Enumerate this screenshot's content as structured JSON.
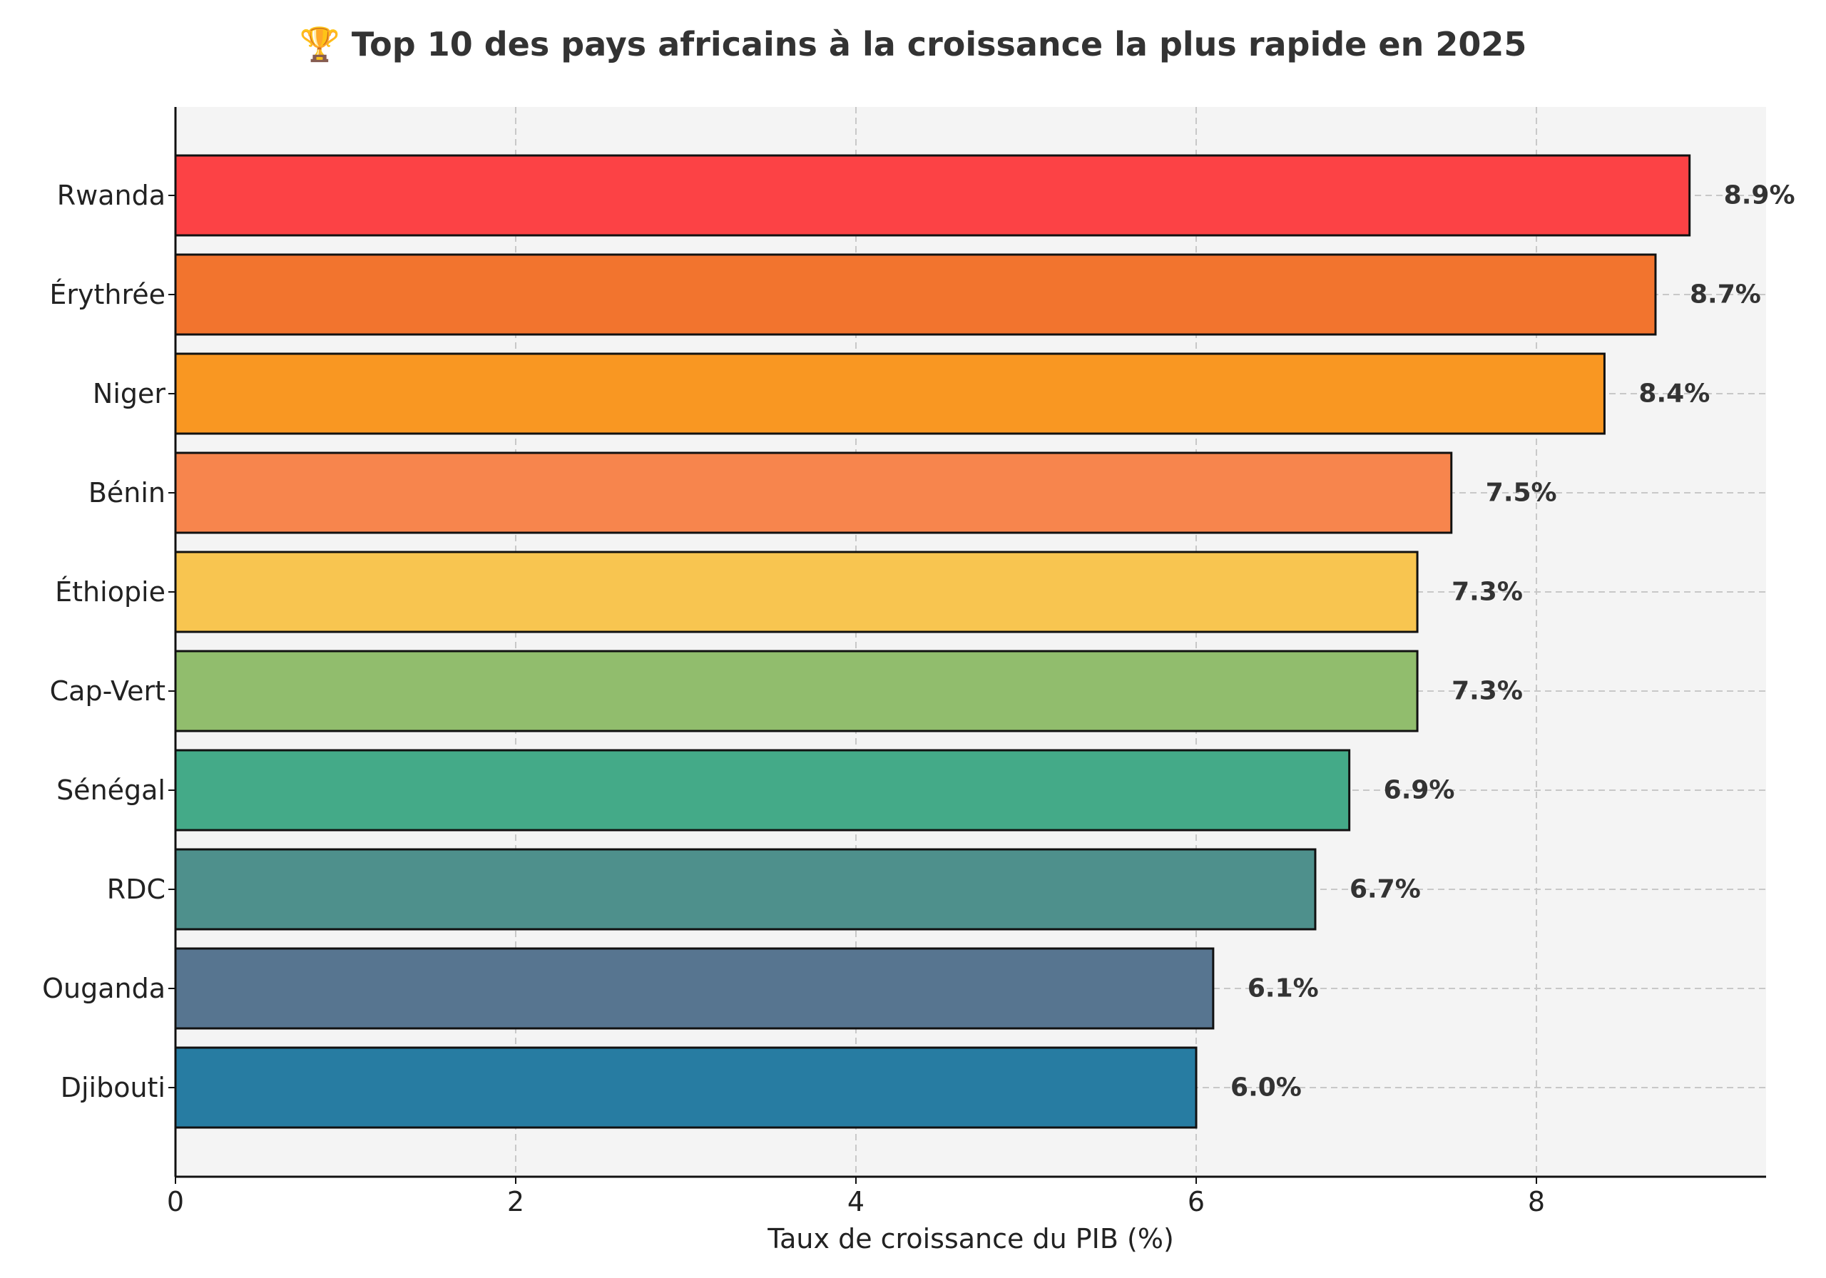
{
  "chart_data": {
    "type": "bar",
    "orientation": "horizontal",
    "title": "🏆 Top 10 des pays africains à la croissance la plus rapide en 2025",
    "xlabel": "Taux de croissance du PIB (%)",
    "ylabel": "",
    "xlim": [
      0,
      9.35
    ],
    "xticks": [
      0,
      2,
      4,
      6,
      8
    ],
    "grid": true,
    "categories": [
      "Rwanda",
      "Érythrée",
      "Niger",
      "Bénin",
      "Éthiopie",
      "Cap-Vert",
      "Sénégal",
      "RDC",
      "Ouganda",
      "Djibouti"
    ],
    "values": [
      8.9,
      8.7,
      8.4,
      7.5,
      7.3,
      7.3,
      6.9,
      6.7,
      6.1,
      6.0
    ],
    "value_labels": [
      "8.9%",
      "8.7%",
      "8.4%",
      "7.5%",
      "7.3%",
      "7.3%",
      "6.9%",
      "6.7%",
      "6.1%",
      "6.0%"
    ],
    "colors": [
      "#fc4245",
      "#f2742e",
      "#f99722",
      "#f7854d",
      "#f8c550",
      "#91bd6d",
      "#44aa88",
      "#4e908c",
      "#577590",
      "#277ca2"
    ],
    "plot_background": "#f4f4f4"
  }
}
